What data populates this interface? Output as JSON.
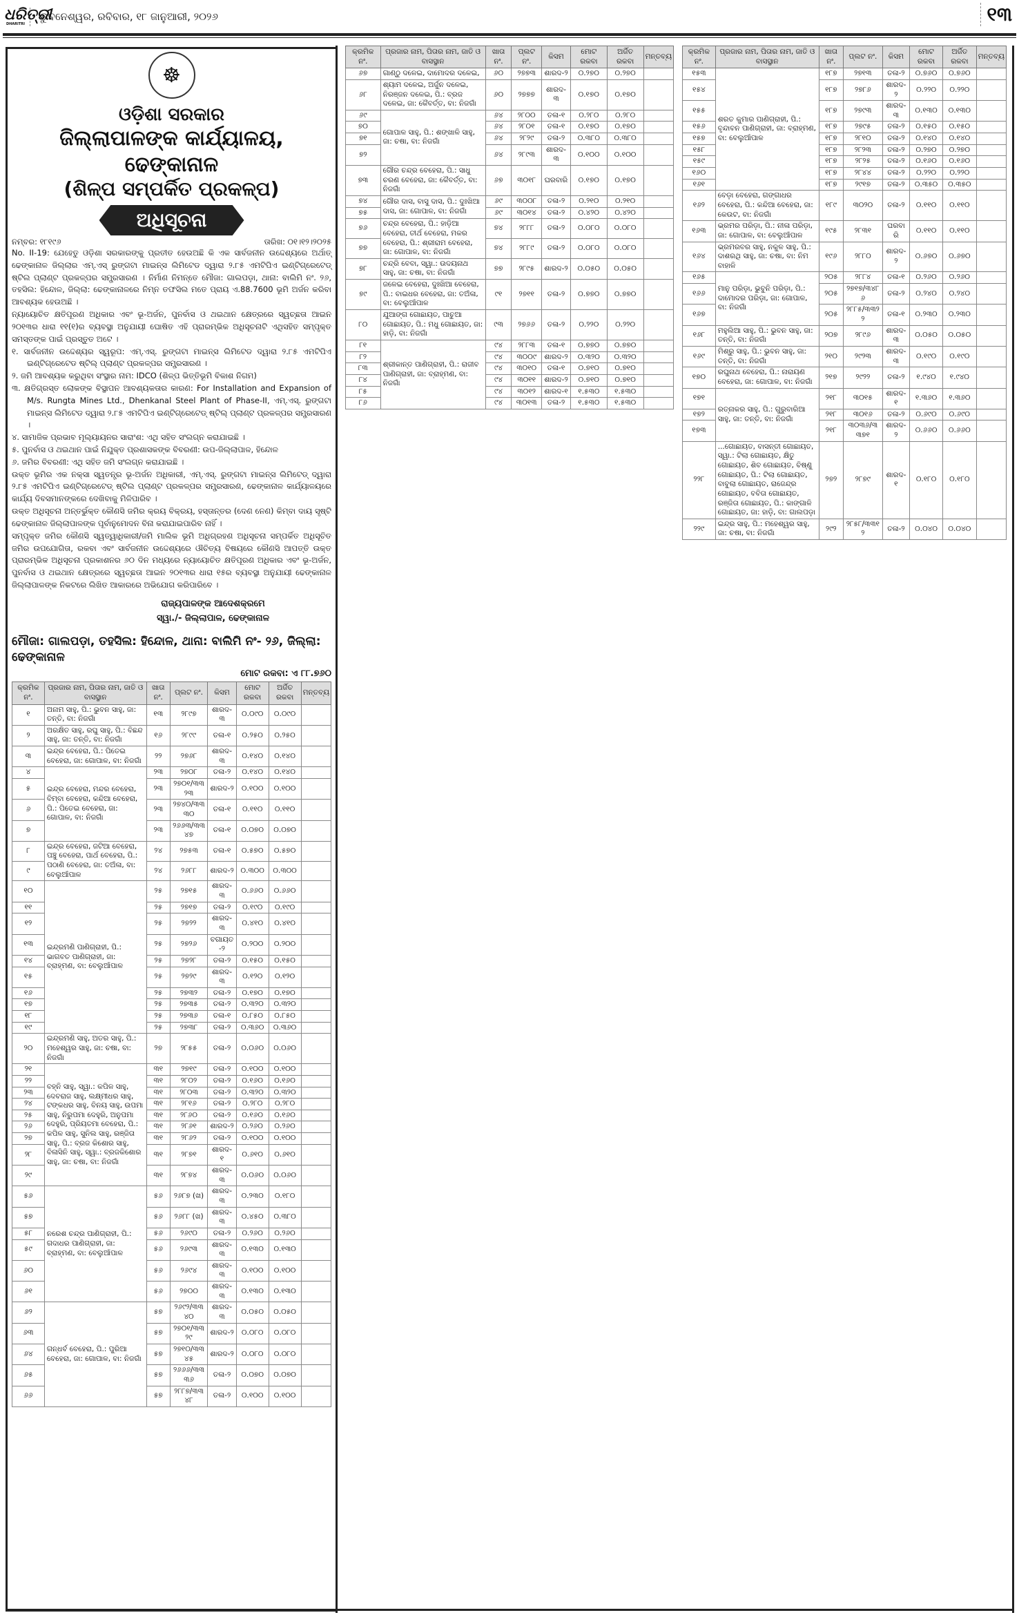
{
  "masthead": {
    "logo_text": "ଧରିତ୍ରୀ",
    "logo_sub": "DHARITRI",
    "dateline": "ଭୁବନେଶ୍ୱର, ରବିବାର, ୧୮ ଜାନୁଆରୀ, ୨୦୨୬",
    "page_number": "୧୩"
  },
  "notice": {
    "emblem_icon": "odisha-government-emblem",
    "govt": "ଓଡ଼ିଶା ସରକାର",
    "office": "ଜିଲ୍ଲାପାଳଙ୍କ କାର୍ଯ୍ୟାଳୟ, ଢେଙ୍କାନାଳ",
    "subtitle": "(ଶିଳ୍ପ ସମ୍ପର୍କିତ ପ୍ରକଳ୍ପ)",
    "heading": "ଅଧିସୂଚନା",
    "number": "ନମ୍ବର: ୧୮୧୯୬",
    "date": "ତାରିଖ: ୦୧।୧୨।୨୦୨୫",
    "paragraphs": [
      "No. II-19: ଯେହେତୁ ଓଡ଼ିଶା ସରକାରଙ୍କୁ ପ୍ରତୀତ ହେଉଅଛି କି ଏକ ସାର୍ବଜନୀନ ଉଦ୍ଦେଶ୍ୟରେ ଅର୍ଥାତ୍ ଢେଙ୍କାନାଳ ଜିଲ୍ଲାର ଏମ୍.ଏସ୍ ରୁଙ୍ଗଟା ମାଇନ୍ସ ଲିମିଟେଡ ଦ୍ୱାରା ୨.୮୫ ଏମଟିପିଏ ଇଣ୍ଟିଗ୍ରେଟେଡ୍ ଷ୍ଟିଲ ପ୍ଲାଣ୍ଟ ପ୍ରକଳ୍ପର ସମ୍ପ୍ରସାରଣ । ନିର୍ମାଣ ନିମନ୍ତେ ମୌଜା: ଗାଲପଡ଼ା, ଥାନା: ବାଲିମି ନଂ. ୨୬, ତହସିଲ: ହିନ୍ଦୋଳ, ଜିଲ୍ଲା: ଢେଙ୍କାନାଳରେ ନିମ୍ନ ତଫସିଲ ମତେ ପ୍ରାୟ ଏ.88.7600 ଭୂମି ଅର୍ଜନ କରିବା ଆବଶ୍ୟକ ହେଉଅଛି ।",
      "ନ୍ୟାୟୋଚିତ କ୍ଷତିପୂରଣ ଅଧିକାର ଏବଂ ଭୂ-ଅର୍ଜନ, ପୁନର୍ବାସ ଓ ଥଇଥାନ କ୍ଷେତ୍ରରେ ସ୍ୱଚ୍ଛତା ଆଇନ ୨୦୧୩ର ଧାରା ୧୧(୧)ର ବ୍ୟବସ୍ଥା ଅନୁଯାୟୀ ଘୋଷିତ ଏହି ପ୍ରାରମ୍ଭିକ ଅଧିସୂଚନାଟି ଏଥିସହିତ ସମ୍ପୃକ୍ତ ସମସ୍ତଙ୍କ ପାଇଁ ପ୍ରସ୍ତୁତ ଅଟେ ।"
    ],
    "items": [
      "୧.  ସାର୍ବଜନୀନ ଉଦ୍ଦେଶ୍ୟର ସ୍ୱରୂପ: ଏମ୍.ଏସ୍. ରୁଙ୍ଗଟା ମାଇନ୍ସ ଲିମିଟେଡ ଦ୍ୱାରା ୨.୮୫ ଏମଟିପିଏ ଇଣ୍ଟିଗ୍ରେଟେଡ ଷ୍ଟିଲ୍ ପ୍ଲାଣ୍ଟ ପ୍ରକଳ୍ପର ସମ୍ପ୍ରସାରଣ ।",
      "୨.  ଜମି ଆବଶ୍ୟକ କରୁଥିବା ସଂସ୍ଥାର ନାମ: IDCO (ଶିଳ୍ପ ଭିତ୍ତିଭୂମି ବିକାଶ ନିଗମ)",
      "୩.  କ୍ଷତିଗ୍ରସ୍ତ ଲୋକଙ୍କ ବିସ୍ଥାପନ ଆବଶ୍ୟକତାର କାରଣ: For Installation and Expansion of M/s. Rungta Mines Ltd., Dhenkanal Steel Plant of Phase-II, ଏମ୍.ଏସ୍. ରୁଙ୍ଗଟା ମାଇନ୍ସ ଲିମିଟେଡ ଦ୍ୱାରା ୨.୮୫ ଏମଟିପିଏ ଇଣ୍ଟିଗ୍ରେଟେଡ୍ ଷ୍ଟିଲ୍ ପ୍ଲାଣ୍ଟ ପ୍ରକଳ୍ପର ସମ୍ପ୍ରସାରଣ ।",
      "୪.  ସାମାଜିକ ପ୍ରଭାବ ମୂଲ୍ୟାୟନର ସାରାଂଶ: ଏଥି ସହିତ ସଂଲଗ୍ନ କରାଯାଇଛି ।",
      "୫.  ପୁନର୍ବାସ ଓ ଥଇଥାନ ପାଇଁ ନିଯୁକ୍ତ ପ୍ରଶାସକଙ୍କ ବିବରଣୀ: ଉପ-ଜିଲ୍ଲାପାଳ, ହିନ୍ଦୋଳ",
      "୬.  ଜମିର ବିବରଣୀ: ଏଥି ସହିତ ଜମି ସଂଲଗ୍ନ କରାଯାଇଛି ।"
    ],
    "closing": [
      "ଉକ୍ତ ଭୂମିର ଏକ ନକ୍ସା ସ୍ୱତନ୍ତ୍ର ଭୂ-ଅର୍ଜନ ଅଧିକାରୀ, ଏମ୍.ଏସ୍. ରୁଙ୍ଗଟା ମାଇନ୍ସ ଲିମିଟେଡ୍ ଦ୍ୱାରା ୨.୮୫ ଏମଟିପିଏ ଇଣ୍ଟିଗ୍ରେଟେଡ୍ ଷ୍ଟିଲ ପ୍ଲାଣ୍ଟ ପ୍ରକଳ୍ପର ସମ୍ପ୍ରସାରଣ, ଢେଙ୍କାନାଳ କାର୍ଯ୍ୟାଳୟରେ କାର୍ଯ୍ୟ ଦିବସମାନଙ୍କରେ ଦେଖିବାକୁ ମିଳିପାରିବ ।",
      "ଉକ୍ତ ଅଧିସୂଚନା ଅନ୍ତର୍ଭୁକ୍ତ କୌଣସି ଜମିର କ୍ରୟ ବିକ୍ରୟ, ହସ୍ତାନ୍ତର (ଦେଣ ନେଣ) କିମ୍ବା ଦାୟ ସୃଷ୍ଟି ଢେଙ୍କାନାଳ ଜିଲ୍ଲାପାଳଙ୍କ ପୂର୍ବାନୁମୋଦନ ବିନା କରାଯାଇପାରିବ ନାହିଁ ।",
      "ସମ୍ପୃକ୍ତ ଜମିର କୌଣସି ସ୍ୱତ୍ୱାଧିକାରୀ/ଜମି ମାଲିକ ଭୂମି ଅଧିଗ୍ରହଣ ଅଧିସୂଚନା ସମ୍ପର୍କିତ ଅଧିସୂଚିତ ଜମିର ଉପଯୋଗିତା, ରକବା ଏବଂ ସାର୍ବଜନୀନ ଉଦ୍ଦେଶ୍ୟରେ ଔଚିତ୍ୟ ବିଷୟରେ କୌଣସି ଆପତ୍ତି ଉକ୍ତ ପ୍ରାରମ୍ଭିକ ଅଧିସୂଚନା ପ୍ରକାଶନର ୬୦ ଦିନ ମଧ୍ୟରେ ନ୍ୟାୟୋଚିତ କ୍ଷତିପୂରଣ ଅଧିକାର ଏବଂ ଭୂ-ଅର୍ଜନ, ପୁନର୍ବାସ ଓ ଥଇଥାନ କ୍ଷେତ୍ରରେ ସ୍ୱଚ୍ଛତା ଆଇନ ୨୦୧୩ର ଧାରା ୧୫ର ବ୍ୟବସ୍ଥା ଅନୁଯାୟୀ ଢେଙ୍କାନାଳ ଜିଲ୍ଲାପାଳଙ୍କ ନିକଟରେ ଲିଖିତ ଆକାରରେ ଅଭିଯୋଗ କରିପାରିବେ ।"
    ],
    "sign_line1": "ରାଜ୍ୟପାଳଙ୍କ ଆଦେଶକ୍ରମେ",
    "sign_line2": "ସ୍ୱା./- ଜିଲ୍ଲାପାଳ, ଢେଙ୍କାନାଳ",
    "mouza": "ମୌଜା: ଗାଲପଡ଼ା, ତହସିଲ: ହିନ୍ଦୋଳ, ଥାନା: ବାଲିମି ନଂ- ୨୬, ଜିଲ୍ଲା: ଢେଙ୍କାନାଳ",
    "total_area": "ମୋଟ ରକବା: ଏ ୮୮.୭୬୦"
  },
  "table_headers": [
    "କ୍ରମିକ ନଂ.",
    "ପ୍ରଜାର ନାମ, ପିତାର ନାମ, ଜାତି ଓ ବାସସ୍ଥାନ",
    "ଖାତା ନଂ.",
    "ପ୍ଲଟ ନଂ.",
    "କିସମ",
    "ମୋଟ ରକବା",
    "ଅର୍ଜିତ ରକବା",
    "ମନ୍ତବ୍ୟ"
  ],
  "tables": [
    [
      {
        "name": "ଅନାମ ସାହୁ, ପି.: ଭୁବନ ସାହୁ, ଜା: ତନ୍ତି, ବା: ନିଜଗାଁ",
        "rows": [
          [
            "୧",
            "୧୩",
            "୨୮୯୭",
            "ଶାରଦ-୩",
            "୦.୦୯୦",
            "୦.୦୯୦"
          ]
        ]
      },
      {
        "name": "ଅରକ୍ଷିତ ସାହୁ, ରଘୁ ସାହୁ, ପି.: ବିଛନ୍ଦ ସାହୁ, ଜା: ତନ୍ତି, ବା: ନିଜଗାଁ",
        "rows": [
          [
            "୨",
            "୧୬",
            "୨୮୯୯",
            "ତଳା-୧",
            "୦.୨୫୦",
            "୦.୨୫୦"
          ]
        ]
      },
      {
        "name": "ଇନ୍ଦ୍ର ବେହେରା, ପି.: ପିତେଇ ବେହେରା, ଜା: ଗୋପାଳ, ବା: ନିଜଗାଁ",
        "rows": [
          [
            "୩",
            "୨୨",
            "୨୭୬୮",
            "ଶାରଦ-୩",
            "୦.୧୪୦",
            "୦.୧୪୦"
          ]
        ]
      },
      {
        "name": "ଇନ୍ଦ୍ର ବେହେରା, ମନ୍ଦର ବେହେରା, ବିମ୍ବା ବେହେରା, କନ୍ଦିଆ ବେହେରା, ପି.: ପିତେଇ ବେହେରା, ଜା: ଗୋପାଳ, ବା: ନିଜଗାଁ",
        "rows": [
          [
            "୪",
            "୨୩",
            "୨୭୦୮",
            "ତଳା-୨",
            "୦.୧୪୦",
            "୦.୧୪୦"
          ],
          [
            "୫",
            "୨୩",
            "୨୭୦୧/୩୩୨୩",
            "ଶାରଦ-୨",
            "୦.୧୦୦",
            "୦.୧୦୦"
          ],
          [
            "୬",
            "୨୩",
            "୨୭୪୦/୩୩୩୦",
            "ତଳା-୧",
            "୦.୧୧୦",
            "୦.୧୧୦"
          ],
          [
            "୭",
            "୨୩",
            "୨୬୬୩/୩୩୪୭",
            "ତଳା-୧",
            "୦.୦୭୦",
            "୦.୦୭୦"
          ]
        ]
      },
      {
        "name": "ଇନ୍ଦ୍ର ବେହେରା, ଜଟିଆ ବେହେରା, ପଞ୍ଚୁ ବେହେରା, ପାର୍ଥ ବେହେରା, ପି.: ପଠାଣି ବେହେରା, ଜା: ତଅଁଳା, ବା: ବେଲୁଆଁପାଳ",
        "rows": [
          [
            "୮",
            "୨୪",
            "୨୭୫୩",
            "ତଳା-୧",
            "୦.୫୭୦",
            "୦.୫୭୦"
          ],
          [
            "୯",
            "୨୪",
            "୨୬୮୮",
            "ଶାରଦ-୨",
            "୦.୩୦୦",
            "୦.୩୦୦"
          ]
        ]
      },
      {
        "name": "ଇନ୍ଦ୍ରମଣି ପାଣିଗ୍ରାହୀ, ପି.: ଭାଗବତ ପାଣିଗ୍ରାହୀ, ଜା: ବ୍ରାହ୍ମଣ, ବା: ବେଲୁଆଁପାଳ",
        "rows": [
          [
            "୧୦",
            "୨୫",
            "୨୭୧୫",
            "ଶାରଦ-୩",
            "୦.୬୬୦",
            "୦.୬୬୦"
          ],
          [
            "୧୧",
            "୨୫",
            "୨୭୧୭",
            "ତଳା-୨",
            "୦.୧୯୦",
            "୦.୧୯୦"
          ],
          [
            "୧୨",
            "୨୫",
            "୨୭୨୨",
            "ଶାରଦ-୩",
            "୦.୪୧୦",
            "୦.୪୧୦"
          ],
          [
            "୧୩",
            "୨୫",
            "୨୭୨୬",
            "ବଗାୟତ-୨",
            "୦.୨୦୦",
            "୦.୨୦୦"
          ],
          [
            "୧୪",
            "୨୫",
            "୨୭୨୮",
            "ତଳା-୨",
            "୦.୧୫୦",
            "୦.୧୫୦"
          ],
          [
            "୧୫",
            "୨୫",
            "୨୭୨୯",
            "ଶାରଦ-୩",
            "୦.୧୨୦",
            "୦.୧୨୦"
          ],
          [
            "୧୬",
            "୨୫",
            "୨୭୩୨",
            "ତଳା-୨",
            "୦.୧୭୦",
            "୦.୧୭୦"
          ],
          [
            "୧୭",
            "୨୫",
            "୨୭୩୫",
            "ତଳା-୨",
            "୦.୩୨୦",
            "୦.୩୨୦"
          ],
          [
            "୧୮",
            "୨୫",
            "୨୭୩୬",
            "ତଳା-୧",
            "୦.୮୫୦",
            "୦.୮୫୦"
          ],
          [
            "୧୯",
            "୨୫",
            "୨୭୩୮",
            "ତଳା-୨",
            "୦.୩୬୦",
            "୦.୩୬୦"
          ]
        ]
      },
      {
        "name": "ଇନ୍ଦ୍ରମଣି ସାହୁ, ଅତର ସାହୁ, ପି.: ମହେଶ୍ୱର ସାହୁ, ଜା: ଚଷା, ବା: ନିଜଗାଁ",
        "rows": [
          [
            "୨୦",
            "୨୭",
            "୨୮୫୫",
            "ତଳା-୨",
            "୦.୦୬୦",
            "୦.୦୬୦"
          ]
        ]
      },
      {
        "name": "ବହ୍ନି ସାହୁ, ସ୍ୱା.: କପିଳ ସାହୁ, ଦେବରାଜ ସାହୁ, ଲକ୍ଷ୍ମୀଧର ସାହୁ, ଟଙ୍କଧର ସାହୁ, ବିନୟ ସାହୁ, ଉପମା ସାହୁ, ନିରୁପମା ଦେହୁରି, ଅନୁପମା ଦେହୁରି, ପ୍ରିୟତମା ବେହେରା, ପି.: କପିଳ ସାହୁ, ସୁନିଲ ସାହୁ, ରଞ୍ଜିତା ସାହୁ, ପି.: ବ୍ରଜ କିଶୋର ସାହୁ, ବିଳାସିନି ସାହୁ, ସ୍ୱା.: ବ୍ରଜକିଶୋର ସାହୁ, ଜା: ଚଷା, ବା: ନିଜଗାଁ",
        "rows": [
          [
            "୨୧",
            "୩୧",
            "୨୭୧୯",
            "ତଳା-୨",
            "୦.୧୦୦",
            "୦.୧୦୦"
          ],
          [
            "୨୨",
            "୩୧",
            "୨୮୦୨",
            "ତଳା-୨",
            "୦.୧୬୦",
            "୦.୧୬୦"
          ],
          [
            "୨୩",
            "୩୧",
            "୨୮୦୩",
            "ତଳା-୨",
            "୦.୩୨୦",
            "୦.୩୨୦"
          ],
          [
            "୨୪",
            "୩୧",
            "୨୮୧୬",
            "ତଳା-୨",
            "୦.୨୮୦",
            "୦.୨୮୦"
          ],
          [
            "୨୫",
            "୩୧",
            "୨୮୬୦",
            "ତଳା-୨",
            "୦.୧୬୦",
            "୦.୧୬୦"
          ],
          [
            "୨୬",
            "୩୧",
            "୨୮୬୧",
            "ଶାରଦ-୨",
            "୦.୨୬୦",
            "୦.୨୬୦"
          ],
          [
            "୨୭",
            "୩୧",
            "୨୮୬୨",
            "ତଳା-୨",
            "୦.୧୦୦",
            "୦.୧୦୦"
          ],
          [
            "୨୮",
            "୩୧",
            "୨୮୭୧",
            "ଶାରଦ-୧",
            "୦.୬୧୦",
            "୦.୬୧୦"
          ],
          [
            "୨୯",
            "୩୧",
            "୨୮୭୪",
            "ଶାରଦ-୩",
            "୦.୦୬୦",
            "୦.୦୬୦"
          ]
        ]
      },
      {
        "name": "ନରେଶ ଚନ୍ଦ୍ର ପାଣିଗ୍ରାହୀ, ପି.: ଗଦାଧର ପାଣିଗ୍ରାହୀ, ଜା: ବ୍ରାହ୍ମଣ, ବା: ବେଲୁଆଁପାଳ",
        "rows": [
          [
            "୫୬",
            "୫୬",
            "୨୬୮୭ (ଖ)",
            "ଶାରଦ-୩",
            "୦.୨୩୦",
            "୦.୧୮୦"
          ],
          [
            "୫୭",
            "୫୬",
            "୨୬୮୮ (ଖ)",
            "ଶାରଦ-୩",
            "୦.୪୫୦",
            "୦.୩୮୦"
          ],
          [
            "୫୮",
            "୫୬",
            "୨୬୯୦",
            "ତଳା-୨",
            "୦.୨୬୦",
            "୦.୨୬୦"
          ],
          [
            "୫୯",
            "୫୬",
            "୨୬୯୩",
            "ଶାରଦ-୩",
            "୦.୧୩୦",
            "୦.୧୩୦"
          ],
          [
            "୬୦",
            "୫୬",
            "୨୬୯୪",
            "ଶାରଦ-୩",
            "୦.୧୦୦",
            "୦.୧୦୦"
          ],
          [
            "୬୧",
            "୫୬",
            "୨୭୦୦",
            "ଶାରଦ-୩",
            "୦.୧୩୦",
            "୦.୧୩୦"
          ]
        ]
      },
      {
        "name": "ଗନ୍ଧର୍ବ ବେହେରା, ପି.: ପୁରିଆ ବେହେରା, ଜା: ଗୋପାଳ, ବା: ନିଜଗାଁ",
        "rows": [
          [
            "୬୨",
            "୫୭",
            "୨୬୯୨/୩୩୪୦",
            "ଶାରଦ-୩",
            "୦.୦୫୦",
            "୦.୦୫୦"
          ],
          [
            "୬୩",
            "୫୭",
            "୨୭୦୧/୩୩୨୯",
            "ଶାରଦ-୨",
            "୦.୦୮୦",
            "୦.୦୮୦"
          ],
          [
            "୬୪",
            "୫୭",
            "୨୭୧୦/୩୩୪୫",
            "ଶାରଦ-୨",
            "୦.୦୮୦",
            "୦.୦୮୦"
          ],
          [
            "୬୫",
            "୫୭",
            "୨୬୬୬/୩୩୩୬",
            "ତଳା-୨",
            "୦.୦୭୦",
            "୦.୦୭୦"
          ],
          [
            "୬୬",
            "୫୭",
            "୨୮୮୭/୩୩୪୮",
            "ତଳା-୨",
            "୦.୧୦୦",
            "୦.୧୦୦"
          ]
        ]
      }
    ],
    [
      {
        "name": "ଗାଣ୍ଠୁ ଦଳେଇ, ଦାମୋଦର ଦଳେଇ,",
        "rows": [
          [
            "୬୭",
            "୬୦",
            "୨୭୭୩",
            "ଶାରଦ-୨",
            "୦.୨୭୦",
            "୦.୨୭୦"
          ]
        ]
      },
      {
        "name": "ଶ୍ୟାମ ଦଳେଇ, ଅର୍ଜୁନ ଦଳେଇ, ନିରଞ୍ଜନ ଦଳେଇ, ପି.: ବ୍ରଜ ଦଳେଇ, ଜା: କୈବର୍ତ୍ତ, ବା: ନିଜଗାଁ",
        "rows": [
          [
            "୬୮",
            "୬୦",
            "୨୭୭୭",
            "ଶାରଦ-୩",
            "୦.୧୭୦",
            "୦.୧୭୦"
          ]
        ]
      },
      {
        "name": "ଗୋପାଳ ସାହୁ, ପି.: ଶଙ୍ଖାଳି ସାହୁ, ଜା: ଚଷା, ବା: ନିଜଗାଁ",
        "rows": [
          [
            "୬୯",
            "୬୪",
            "୨୮୦୦",
            "ତଳା-୧",
            "୦.୨୮୦",
            "୦.୨୮୦"
          ],
          [
            "୭୦",
            "୬୪",
            "୨୮୦୧",
            "ତଳା-୧",
            "୦.୧୭୦",
            "୦.୧୭୦"
          ],
          [
            "୭୧",
            "୬୪",
            "୨୮୨୯",
            "ତଳା-୨",
            "୦.୩୮୦",
            "୦.୩୮୦"
          ],
          [
            "୭୨",
            "୬୪",
            "୨୮୯୩",
            "ଶାରଦ-୩",
            "୦.୧୦୦",
            "୦.୧୦୦"
          ]
        ]
      },
      {
        "name": "ଗୌର ଚନ୍ଦ୍ର ବେହେରା, ପି.: ସାଧୁ ଚରଣ ବେହେରା, ଜା: କୈବର୍ତ୍ତ, ବା: ନିଜଗାଁ",
        "rows": [
          [
            "୭୩",
            "୬୭",
            "୩୦୧୮",
            "ଘରବାରି",
            "୦.୧୭୦",
            "୦.୧୭୦"
          ]
        ]
      },
      {
        "name": "ଗୌର ଦାସ, ବାସୁ ଦାସ, ପି.: ଦୁଃଖିଆ ଦାସ, ଜା: ଗୋପାଳ, ବା: ନିଜଗାଁ",
        "rows": [
          [
            "୭୪",
            "୬୯",
            "୩୦୦୮",
            "ତଳା-୨",
            "୦.୨୧୦",
            "୦.୨୧୦"
          ],
          [
            "୭୫",
            "୬୯",
            "୩୦୧୪",
            "ତଳା-୨",
            "୦.୪୨୦",
            "୦.୪୨୦"
          ]
        ]
      },
      {
        "name": "ଚନ୍ଦ୍ର ବେହେରା, ପି.: ହାଡ଼ିଆ ବେହେରା, ତୀର୍ଥ ବେହେରା, ମକର ବେହେରା, ପି.: ଶ୍ରୀରାମ ବେହେରା, ଜା: ଗୋପାଳ, ବା: ନିଜଗାଁ",
        "rows": [
          [
            "୭୬",
            "୭୪",
            "୨୮୮୮",
            "ତଳା-୨",
            "୦.୦୮୦",
            "୦.୦୮୦"
          ],
          [
            "୭୭",
            "୭୪",
            "୨୮୮୯",
            "ତଳା-୨",
            "୦.୦୮୦",
            "୦.୦୮୦"
          ]
        ]
      },
      {
        "name": "ଚନ୍ଦ୍ରି ବେବା, ସ୍ୱା.: ଉଦୟନାଥ ସାହୁ, ଜା: ଚଷା, ବା: ନିଜଗାଁ",
        "rows": [
          [
            "୭୮",
            "୭୭",
            "୨୮୯୫",
            "ଶାରଦ-୨",
            "୦.୦୫୦",
            "୦.୦୫୦"
          ]
        ]
      },
      {
        "name": "ଜଳେଇ ବେହେରା, ଦୁଃଖିଆ ବେହେରା, ପି.: ବାଇଧର ବେହେରା, ଜା: ତଅଁଳା, ବା: ବେଲୁଆଁପାଳ",
        "rows": [
          [
            "୭୯",
            "୯୧",
            "୨୭୧୧",
            "ତଳା-୨",
            "୦.୭୭୦",
            "୦.୭୭୦"
          ]
        ]
      },
      {
        "name": "ଯୁଆଙ୍ଗ ଗୋଛାୟତ, ପାଚୁଆ ଗୋଛାୟତ, ପି.: ମଧୁ ଗୋଛାୟତ, ଜା: ହାଡ଼ି, ବା: ନିଜଗାଁ",
        "rows": [
          [
            "୮୦",
            "୯୩",
            "୨୭୬୬",
            "ତଳା-୨",
            "୦.୨୨୦",
            "୦.୨୨୦"
          ]
        ]
      },
      {
        "name": "ଶ୍ରୀକାନ୍ତ ପାଣିଗ୍ରାହୀ, ପି.: ରାଜୀବ ପାଣିଗ୍ରାହୀ, ଜା: ବ୍ରାହ୍ମଣ, ବା: ନିଜଗାଁ",
        "rows": [
          [
            "୮୧",
            "୯୪",
            "୨୮୮୩",
            "ତଳା-୧",
            "୦.୭୭୦",
            "୦.୭୭୦"
          ],
          [
            "୮୨",
            "୯୪",
            "୩୦୦୯",
            "ଶାରଦ-୨",
            "୦.୩୨୦",
            "୦.୩୨୦"
          ],
          [
            "୮୩",
            "୯୪",
            "୩୦୧୦",
            "ତଳା-୧",
            "୦.୭୧୦",
            "୦.୭୧୦"
          ],
          [
            "୮୪",
            "୯୪",
            "୩୦୧୧",
            "ଶାରଦ-୨",
            "୦.୭୧୦",
            "୦.୭୧୦"
          ],
          [
            "୮୫",
            "୯୪",
            "୩୦୧୨",
            "ଶାରଦ-୧",
            "୧.୫୩୦",
            "୧.୫୩୦"
          ],
          [
            "୮୬",
            "୯୪",
            "୩୦୧୩",
            "ତଳା-୨",
            "୧.୫୩୦",
            "୧.୫୩୦"
          ]
        ]
      }
    ],
    [
      {
        "name": "ଶରତ କୁମାର ପାଣିଗ୍ରାହୀ, ପି.: ବୃନ୍ଦାବନ ପାଣିଗ୍ରାହୀ, ଜା: ବ୍ରାହ୍ମଣ, ବା: ବେଲୁଆଁପାଳ",
        "rows": [
          [
            "୧୫୩",
            "୧୮୭",
            "୨୭୧୩",
            "ତଳା-୨",
            "୦.୭୬୦",
            "୦.୭୬୦"
          ],
          [
            "୧୫୪",
            "୧୮୭",
            "୨୭୮୬",
            "ଶାରଦ-୨",
            "୦.୨୨୦",
            "୦.୨୨୦"
          ],
          [
            "୧୫୫",
            "୧୮୭",
            "୨୭୯୩",
            "ଶାରଦ-୩",
            "୦.୧୩୦",
            "୦.୧୩୦"
          ],
          [
            "୧୫୬",
            "୧୮୭",
            "୨୭୯୫",
            "ତଳା-୨",
            "୦.୧୫୦",
            "୦.୧୫୦"
          ],
          [
            "୧୫୭",
            "୧୮୭",
            "୨୮୧୦",
            "ତଳା-୨",
            "୦.୧୪୦",
            "୦.୧୪୦"
          ],
          [
            "୧୫୮",
            "୧୮୭",
            "୨୮୨୩",
            "ତଳା-୨",
            "୦.୨୭୦",
            "୦.୨୭୦"
          ],
          [
            "୧୫୯",
            "୧୮୭",
            "୨୮୨୫",
            "ତଳା-୨",
            "୦.୧୬୦",
            "୦.୧୬୦"
          ],
          [
            "୧୬୦",
            "୧୮୭",
            "୨୮୪୪",
            "ତଳା-୨",
            "୦.୨୨୦",
            "୦.୨୨୦"
          ],
          [
            "୧୬୧",
            "୧୮୭",
            "୨୯୧୭",
            "ତଳା-୨",
            "୦.୩୫୦",
            "୦.୩୫୦"
          ]
        ]
      },
      {
        "name": "ବେଡ଼ା ବେହେରା, ଗଙ୍ଗାଧର ବେହେରା, ପି.: କନ୍ଦିଆ ବେହେରା, ଜା: କେଉଟ, ବା: ନିଜଗାଁ",
        "rows": [
          [
            "୧୬୨",
            "୧୮୯",
            "୩୦୨୦",
            "ତଳା-୨",
            "୦.୧୧୦",
            "୦.୧୧୦"
          ]
        ]
      },
      {
        "name": "ଭ୍ରମର ପରିଡ଼ା, ପି.: ନୀଳା ପରିଡ଼ା, ଜା: ଗୋପାଳ, ବା: ବେଲୁଆଁପାଳ",
        "rows": [
          [
            "୧୬୩",
            "୧୯୫",
            "୨୮୩୧",
            "ଘରବାରି",
            "୦.୧୧୦",
            "୦.୧୧୦"
          ]
        ]
      },
      {
        "name": "ଭ୍ରମରବର ସାହୁ, ନକୁଳ ସାହୁ, ପି.: ଦାଶରଥି ସାହୁ, ଜା: ଚଷା, ବା: ନିମ ବାହାଳି",
        "rows": [
          [
            "୧୬୪",
            "୧୯୬",
            "୨୮୮୦",
            "ଶାରଦ-୨",
            "୦.୬୭୦",
            "୦.୬୭୦"
          ]
        ]
      },
      {
        "name": "ମାନୁ ପରିଡ଼ା, ଭୁବୁନି ପରିଡ଼ା, ପି.: ଦାମୋଦର ପରିଡ଼ା, ଜା: ଗୋପାଳ, ବା: ନିଜଗାଁ",
        "rows": [
          [
            "୧୬୫",
            "୨୦୫",
            "୨୮୮୪",
            "ତଳା-୧",
            "୦.୨୬୦",
            "୦.୨୬୦"
          ],
          [
            "୧୬୬",
            "୨୦୫",
            "୨୭୧୭/୩୪୮୬",
            "ତଳା-୨",
            "୦.୨୪୦",
            "୦.୨୪୦"
          ],
          [
            "୧୬୭",
            "୨୦୫",
            "୨୮୮୫/୩୩୨୨",
            "ତଳା-୧",
            "୦.୨୩୦",
            "୦.୨୩୦"
          ]
        ]
      },
      {
        "name": "ମହୁଲିଆ ସାହୁ, ପି.: ଭୁବନ ସାହୁ, ଜା: ତନ୍ତି, ବା: ନିଜଗାଁ",
        "rows": [
          [
            "୧୬୮",
            "୨୦୭",
            "୨୮୯୬",
            "ଶାରଦ-୩",
            "୦.୦୫୦",
            "୦.୦୫୦"
          ]
        ]
      },
      {
        "name": "ମିଶ୍ରୁ ସାହୁ, ପି.: ଭୁବନ ସାହୁ, ଜା: ତନ୍ତି, ବା: ନିଜଗାଁ",
        "rows": [
          [
            "୧୬୯",
            "୨୧୦",
            "୨୯୨୩",
            "ଶାରଦ-୩",
            "୦.୧୯୦",
            "୦.୧୯୦"
          ]
        ]
      },
      {
        "name": "ରଘୁନାଥ ବେହେରା, ପି.: ନାରାୟଣ ବେହେରା, ଜା: ଗୋପାଳ, ବା: ନିଜଗାଁ",
        "rows": [
          [
            "୧୭୦",
            "୨୧୭",
            "୨୯୨୨",
            "ତଳା-୨",
            "୧.୯୪୦",
            "୧.୯୪୦"
          ]
        ]
      },
      {
        "name": "ରତ୍ନାକର ସାହୁ, ପି.: ଗୁରୁବାରିଆ ସାହୁ, ଜା: ତନ୍ତି, ବା: ନିଜଗାଁ",
        "rows": [
          [
            "୧୭୧",
            "୨୧୮",
            "୩୦୧୫",
            "ଶାରଦ-୧",
            "୧.୩୬୦",
            "୧.୩୬୦"
          ],
          [
            "୧୭୨",
            "୨୧୮",
            "୩୦୧୬",
            "ତଳା-୨",
            "୦.୬୯୦",
            "୦.୬୯୦"
          ],
          [
            "୧୭୩",
            "୨୧୮",
            "୩୦୩୬/୩୩୭୧",
            "ଶାରଦ-୨",
            "୦.୬୬୦",
            "୦.୬୬୦"
          ]
        ]
      },
      {
        "name": "...ଗୋଛାୟତ, ବାସନ୍ତୀ ଗୋଛାୟତ, ସ୍ୱା.: ଟିଲା ଗୋଛାୟତ, କ୍ଷିତୁ ଗୋଛାୟତ, ଶିବ ଗୋଛାୟତ, ବିଷ୍ଣୁ ଗୋଛାୟତ, ପି.: ଟିଲା ଗୋଛାୟତ, ବାବୁଲା ଗୋଛାୟତ, ରାଜେନ୍ଦ୍ର ଗୋଛାୟତ, ବବିତା ଗୋଛାୟତ, ରଞ୍ଜିତା ଗୋଛାୟତ, ପି.: କାଙ୍ଗାଳି ଗୋଛାୟତ, ଜା: ହାଡ଼ି, ବା: ଗାଲପଡ଼ା",
        "rows": [
          [
            "୨୨୮",
            "୨୭୨",
            "୨୮୭୯",
            "ଶାରଦ-୧",
            "୦.୧୮୦",
            "୦.୧୮୦"
          ]
        ]
      },
      {
        "name": "ଇନ୍ଦ୍ର ସାହୁ, ପି.: ମହେଶ୍ୱର ସାହୁ, ଜା: ଚଷା, ବା: ନିଜଗାଁ",
        "rows": [
          [
            "୨୨୯",
            "୨୯୨",
            "୨୮୫୮/୩୩୧୨",
            "ତଳା-୨",
            "୦.୦୪୦",
            "୦.୦୪୦"
          ]
        ]
      }
    ]
  ]
}
